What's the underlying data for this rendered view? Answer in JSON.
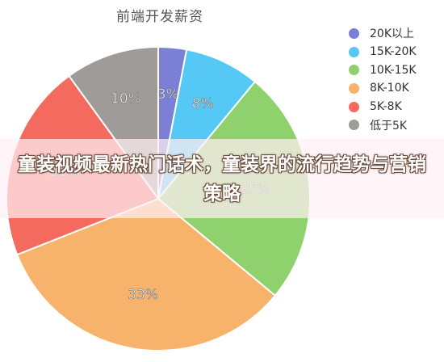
{
  "chart_data": {
    "type": "pie",
    "title": "前端开发薪资",
    "slices": [
      {
        "label": "20K以上",
        "value": 3,
        "display": "3%",
        "color": "#7b7fd6"
      },
      {
        "label": "15K-20K",
        "value": 8,
        "display": "8%",
        "color": "#55c8f5"
      },
      {
        "label": "10K-15K",
        "value": 25,
        "display": "25%",
        "color": "#8fd16c"
      },
      {
        "label": "8K-10K",
        "value": 33,
        "display": "33%",
        "color": "#f7b36b"
      },
      {
        "label": "5K-8K",
        "value": 21,
        "display": "21%",
        "color": "#f46a5f"
      },
      {
        "label": "低于5K",
        "value": 10,
        "display": "10%",
        "color": "#9e9b98"
      }
    ],
    "legend_position": "right"
  },
  "overlay": {
    "headline": "童装视频最新热门话术，童装界的流行趋势与营销策略"
  }
}
